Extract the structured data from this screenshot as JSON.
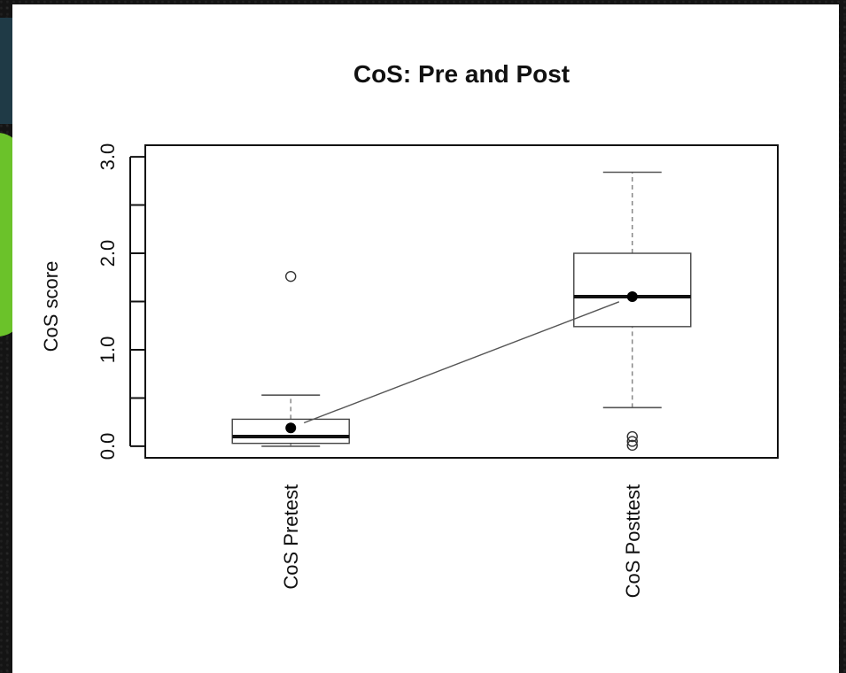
{
  "chart_data": {
    "type": "box",
    "title": "CoS: Pre and Post",
    "xlabel": "",
    "ylabel": "CoS score",
    "ylim": [
      -0.12,
      3.12
    ],
    "yticks": [
      0.0,
      0.5,
      1.0,
      1.5,
      2.0,
      2.5,
      3.0
    ],
    "ytick_labels": [
      "0.0",
      "",
      "1.0",
      "",
      "2.0",
      "",
      "3.0"
    ],
    "categories": [
      "CoS Pretest",
      "CoS Posttest"
    ],
    "boxes": [
      {
        "category": "CoS Pretest",
        "whisker_low": 0.0,
        "q1": 0.03,
        "median": 0.1,
        "q3": 0.28,
        "whisker_high": 0.53,
        "mean": 0.19,
        "outliers": [
          1.76
        ]
      },
      {
        "category": "CoS Posttest",
        "whisker_low": 0.4,
        "q1": 1.24,
        "median": 1.55,
        "q3": 2.0,
        "whisker_high": 2.84,
        "mean": 1.55,
        "outliers": [
          0.1,
          0.05,
          0.01
        ]
      }
    ],
    "mean_line": true,
    "grid": false,
    "legend": "none"
  }
}
